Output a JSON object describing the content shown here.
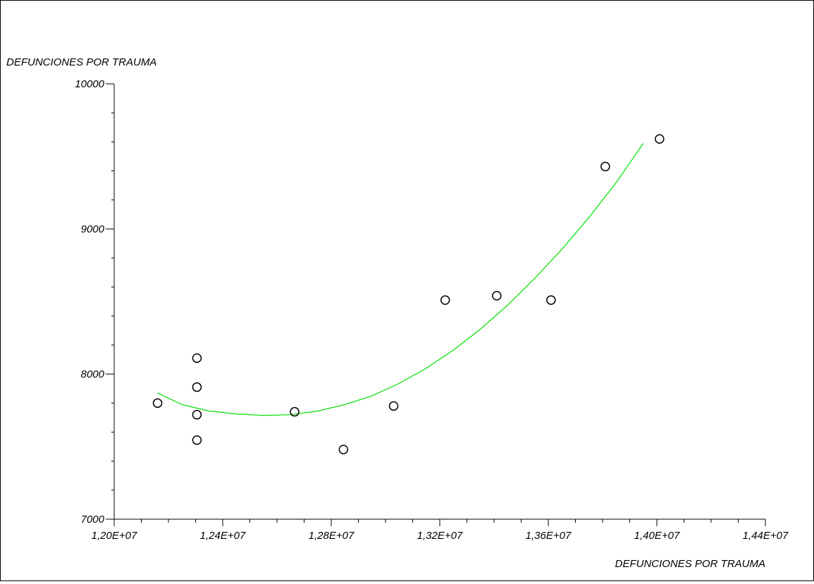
{
  "chart_data": {
    "type": "scatter",
    "ylabel": "DEFUNCIONES POR TRAUMA",
    "xlabel": "DEFUNCIONES POR TRAUMA",
    "xlim": [
      12000000,
      14400000
    ],
    "ylim": [
      7000,
      10000
    ],
    "x_major_ticks": [
      12000000,
      12400000,
      12800000,
      13200000,
      13600000,
      14000000,
      14400000
    ],
    "x_tick_labels": [
      "1,20E+07",
      "1,24E+07",
      "1,28E+07",
      "1,32E+07",
      "1,36E+07",
      "1,40E+07",
      "1,44E+07"
    ],
    "x_minor_step": 100000,
    "y_major_ticks": [
      7000,
      8000,
      9000,
      10000
    ],
    "y_tick_labels": [
      "7000",
      "8000",
      "9000",
      "10000"
    ],
    "y_minor_step": 200,
    "grid": false,
    "points": [
      {
        "x": 12160000,
        "y": 7800
      },
      {
        "x": 12305000,
        "y": 8110
      },
      {
        "x": 12305000,
        "y": 7910
      },
      {
        "x": 12305000,
        "y": 7720
      },
      {
        "x": 12305000,
        "y": 7545
      },
      {
        "x": 12665000,
        "y": 7740
      },
      {
        "x": 12845000,
        "y": 7480
      },
      {
        "x": 13030000,
        "y": 7780
      },
      {
        "x": 13220000,
        "y": 8510
      },
      {
        "x": 13410000,
        "y": 8540
      },
      {
        "x": 13610000,
        "y": 8510
      },
      {
        "x": 13810000,
        "y": 9430
      },
      {
        "x": 14010000,
        "y": 9620
      }
    ],
    "fit": {
      "type": "quadratic",
      "color": "#00e000",
      "x_range": [
        12160000,
        13950000
      ],
      "curve": [
        [
          12160000,
          7870
        ],
        [
          12250000,
          7790
        ],
        [
          12350000,
          7745
        ],
        [
          12450000,
          7725
        ],
        [
          12550000,
          7715
        ],
        [
          12650000,
          7720
        ],
        [
          12750000,
          7745
        ],
        [
          12850000,
          7790
        ],
        [
          12950000,
          7850
        ],
        [
          13050000,
          7935
        ],
        [
          13150000,
          8040
        ],
        [
          13250000,
          8165
        ],
        [
          13350000,
          8310
        ],
        [
          13450000,
          8475
        ],
        [
          13550000,
          8660
        ],
        [
          13650000,
          8860
        ],
        [
          13750000,
          9080
        ],
        [
          13850000,
          9320
        ],
        [
          13950000,
          9590
        ]
      ]
    },
    "marker_color": "#000000"
  }
}
